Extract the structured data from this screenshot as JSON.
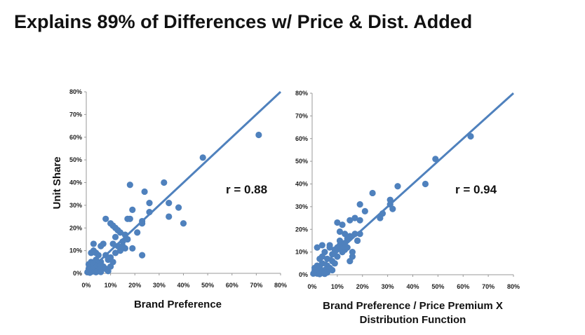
{
  "title": "Explains 89% of Differences w/ Price & Dist. Added",
  "colors": {
    "points": "#4F81BD",
    "line": "#4F81BD",
    "axis": "#999999"
  },
  "chart_data": [
    {
      "type": "scatter",
      "xlabel": "Brand Preference",
      "ylabel": "Unit Share",
      "annotation": "r = 0.88",
      "xlim": [
        0,
        80
      ],
      "ylim": [
        0,
        80
      ],
      "xticks": [
        "0%",
        "10%",
        "20%",
        "30%",
        "40%",
        "50%",
        "60%",
        "70%",
        "80%"
      ],
      "yticks": [
        "0%",
        "10%",
        "20%",
        "30%",
        "40%",
        "50%",
        "60%",
        "70%",
        "80%"
      ],
      "trendline": [
        [
          0,
          0
        ],
        [
          80,
          80
        ]
      ],
      "points": [
        [
          71,
          61
        ],
        [
          48,
          51
        ],
        [
          32,
          40
        ],
        [
          24,
          36
        ],
        [
          18,
          39
        ],
        [
          34,
          31
        ],
        [
          38,
          29
        ],
        [
          40,
          22
        ],
        [
          34,
          25
        ],
        [
          26,
          31
        ],
        [
          26,
          27
        ],
        [
          19,
          28
        ],
        [
          23,
          23
        ],
        [
          23,
          22
        ],
        [
          21,
          18
        ],
        [
          17,
          24
        ],
        [
          18,
          24
        ],
        [
          10,
          22
        ],
        [
          11,
          21
        ],
        [
          12,
          20
        ],
        [
          13,
          19
        ],
        [
          14,
          18
        ],
        [
          16,
          17
        ],
        [
          17,
          15
        ],
        [
          15,
          14
        ],
        [
          13,
          12
        ],
        [
          12,
          16
        ],
        [
          11,
          13
        ],
        [
          16,
          11
        ],
        [
          19,
          11
        ],
        [
          14,
          10
        ],
        [
          23,
          8
        ],
        [
          10,
          7
        ],
        [
          8,
          24
        ],
        [
          7,
          13
        ],
        [
          6,
          12
        ],
        [
          3,
          13
        ],
        [
          3,
          10
        ],
        [
          2,
          9
        ],
        [
          4,
          9
        ],
        [
          5,
          8
        ],
        [
          8,
          8
        ],
        [
          9,
          6
        ],
        [
          6,
          5
        ],
        [
          10,
          3
        ],
        [
          4,
          6
        ],
        [
          2,
          5
        ],
        [
          1,
          4
        ],
        [
          3,
          4
        ],
        [
          5,
          3
        ],
        [
          7,
          3
        ],
        [
          1,
          2
        ],
        [
          2,
          2
        ],
        [
          3,
          2
        ],
        [
          4,
          2
        ],
        [
          6,
          2
        ],
        [
          8,
          2
        ],
        [
          1,
          1
        ],
        [
          2,
          1
        ],
        [
          3,
          1
        ],
        [
          5,
          1
        ],
        [
          0.5,
          0.5
        ],
        [
          1.5,
          0.3
        ],
        [
          2.5,
          0.8
        ],
        [
          4,
          0.5
        ],
        [
          6,
          0.6
        ],
        [
          9,
          1
        ],
        [
          11,
          5
        ],
        [
          12,
          9
        ],
        [
          15,
          12
        ]
      ]
    },
    {
      "type": "scatter",
      "xlabel": "Brand Preference / Price Premium X Distribution Function",
      "xlabel_lines": [
        "Brand Preference / Price Premium X",
        "Distribution Function"
      ],
      "annotation": "r = 0.94",
      "xlim": [
        0,
        80
      ],
      "ylim": [
        0,
        80
      ],
      "xticks": [
        "0%",
        "10%",
        "20%",
        "30%",
        "40%",
        "50%",
        "60%",
        "70%",
        "80%"
      ],
      "yticks": [
        "0%",
        "10%",
        "20%",
        "30%",
        "40%",
        "50%",
        "60%",
        "70%",
        "80%"
      ],
      "trendline": [
        [
          0,
          0
        ],
        [
          80,
          80
        ]
      ],
      "points": [
        [
          63,
          61
        ],
        [
          49,
          51
        ],
        [
          45,
          40
        ],
        [
          34,
          39
        ],
        [
          24,
          36
        ],
        [
          31,
          33
        ],
        [
          31,
          31
        ],
        [
          32,
          29
        ],
        [
          28,
          27
        ],
        [
          27,
          25
        ],
        [
          21,
          28
        ],
        [
          19,
          31
        ],
        [
          17,
          25
        ],
        [
          19,
          24
        ],
        [
          15,
          24
        ],
        [
          10,
          23
        ],
        [
          12,
          22
        ],
        [
          11,
          19
        ],
        [
          13,
          18
        ],
        [
          15,
          17
        ],
        [
          17,
          18
        ],
        [
          19,
          18
        ],
        [
          18,
          15
        ],
        [
          14,
          16
        ],
        [
          12,
          12
        ],
        [
          13,
          11
        ],
        [
          10,
          12
        ],
        [
          16,
          10
        ],
        [
          16,
          8
        ],
        [
          15,
          6
        ],
        [
          11,
          13
        ],
        [
          9,
          11
        ],
        [
          7,
          13
        ],
        [
          7,
          12
        ],
        [
          4,
          13
        ],
        [
          2,
          12
        ],
        [
          5,
          10
        ],
        [
          4,
          8
        ],
        [
          3,
          7
        ],
        [
          6,
          7
        ],
        [
          8,
          6
        ],
        [
          9,
          5
        ],
        [
          6,
          4
        ],
        [
          8,
          2
        ],
        [
          4,
          5
        ],
        [
          2,
          4
        ],
        [
          1,
          3
        ],
        [
          3,
          3
        ],
        [
          5,
          2
        ],
        [
          7,
          3
        ],
        [
          1,
          2
        ],
        [
          2,
          2
        ],
        [
          3,
          1.5
        ],
        [
          4,
          1
        ],
        [
          6,
          1
        ],
        [
          1,
          1
        ],
        [
          2,
          0.5
        ],
        [
          0.5,
          0.5
        ],
        [
          3,
          0.3
        ],
        [
          5,
          0.4
        ],
        [
          10,
          8
        ],
        [
          12,
          10
        ],
        [
          14,
          12
        ],
        [
          8,
          9
        ],
        [
          11,
          15
        ],
        [
          13,
          14
        ]
      ]
    }
  ]
}
